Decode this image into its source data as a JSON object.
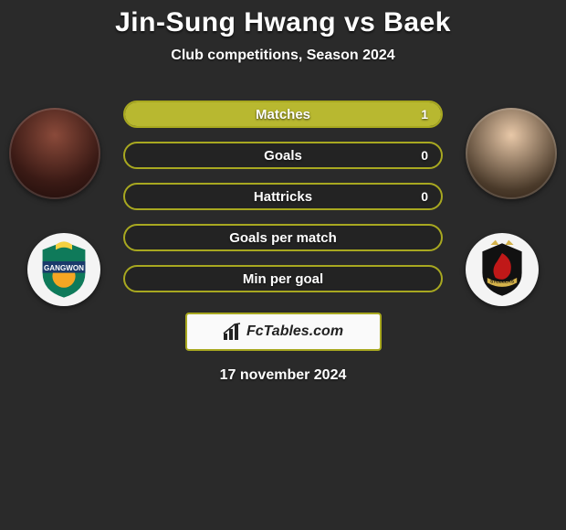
{
  "header": {
    "title": "Jin-Sung Hwang vs Baek",
    "subtitle": "Club competitions, Season 2024"
  },
  "colors": {
    "bar_border": "#a8a820",
    "bar_fill": "#b8b830",
    "background": "#2a2a2a",
    "text": "#ffffff"
  },
  "crests": {
    "left": {
      "label": "GANGWON",
      "bg": "#f4f4f4",
      "shield_fill": "#0f7a5a",
      "banner_fill": "#1a3a6a",
      "text_color": "#ffffff"
    },
    "right": {
      "label": "STEELERS",
      "bg": "#ffffff",
      "shield_fill": "#111111",
      "accent": "#c01818"
    }
  },
  "stats": [
    {
      "label": "Matches",
      "value": "1",
      "fill_pct": 100
    },
    {
      "label": "Goals",
      "value": "0",
      "fill_pct": 0
    },
    {
      "label": "Hattricks",
      "value": "0",
      "fill_pct": 0
    },
    {
      "label": "Goals per match",
      "value": "",
      "fill_pct": 0
    },
    {
      "label": "Min per goal",
      "value": "",
      "fill_pct": 0
    }
  ],
  "footer": {
    "brand": "FcTables.com",
    "date": "17 november 2024"
  }
}
